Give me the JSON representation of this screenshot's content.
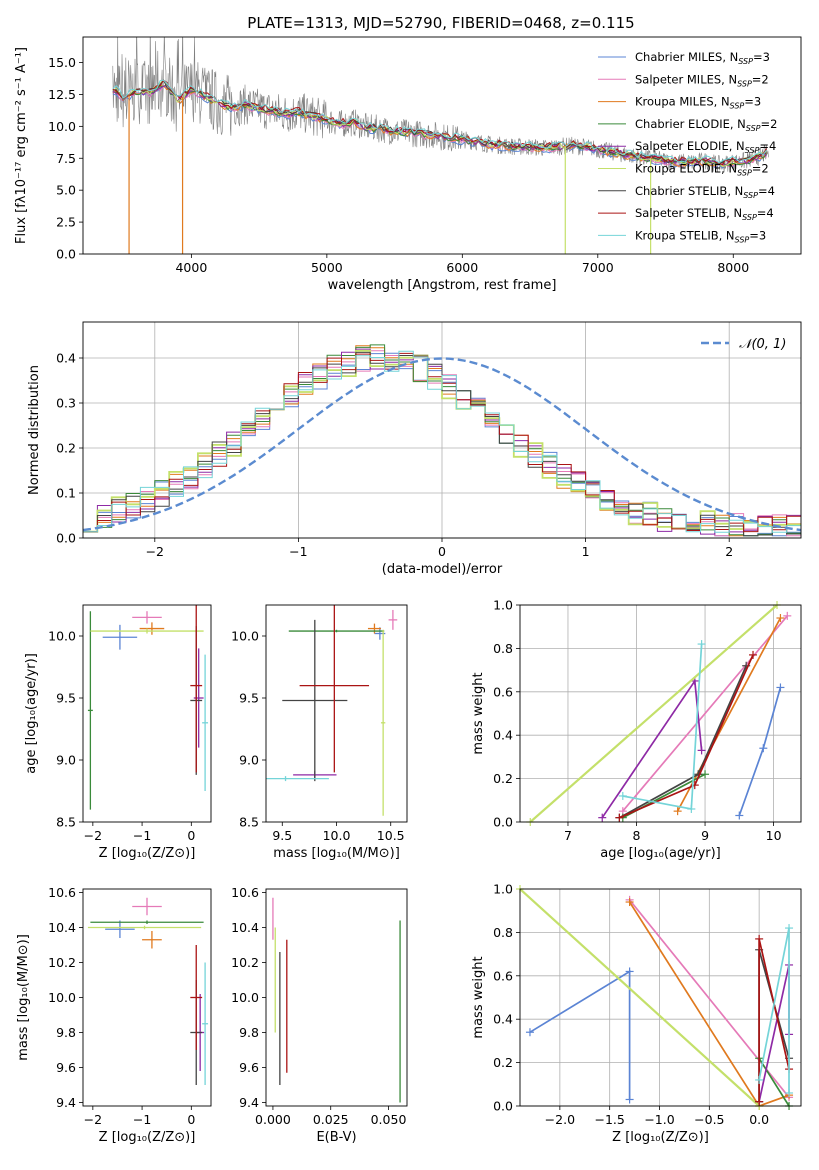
{
  "figure": {
    "title": "PLATE=1313, MJD=52790, FIBERID=0468, z=0.115"
  },
  "colors": {
    "chabrier_miles": "#5b84d4",
    "salpeter_miles": "#e57ab8",
    "kroupa_miles": "#e07a1f",
    "chabrier_elodie": "#3a8a3a",
    "salpeter_elodie": "#8e2aa5",
    "kroupa_elodie": "#c4e06a",
    "chabrier_stelib": "#444444",
    "salpeter_stelib": "#aa1414",
    "kroupa_stelib": "#74d4d8",
    "data_spectrum": "#7f7f7f",
    "normal_curve": "#5b8bd0"
  },
  "chart_data": [
    {
      "id": "spectrum",
      "type": "line",
      "xlabel": "wavelength [Angstrom, rest frame]",
      "ylabel": "Flux [fλ10⁻¹⁷ erg cm⁻² s⁻¹ A⁻¹]",
      "xlim": [
        3200,
        8500
      ],
      "ylim": [
        0,
        17
      ],
      "xticks": [
        4000,
        5000,
        6000,
        7000,
        8000
      ],
      "yticks": [
        0.0,
        2.5,
        5.0,
        7.5,
        10.0,
        12.5,
        15.0
      ],
      "legend": "top-right",
      "legend_entries": [
        {
          "key": "chabrier_miles",
          "label": "Chabrier MILES, N",
          "sub": "SSP",
          "suffix": "=3"
        },
        {
          "key": "salpeter_miles",
          "label": "Salpeter MILES, N",
          "sub": "SSP",
          "suffix": "=2"
        },
        {
          "key": "kroupa_miles",
          "label": "Kroupa MILES, N",
          "sub": "SSP",
          "suffix": "=3"
        },
        {
          "key": "chabrier_elodie",
          "label": "Chabrier ELODIE, N",
          "sub": "SSP",
          "suffix": "=2"
        },
        {
          "key": "salpeter_elodie",
          "label": "Salpeter ELODIE, N",
          "sub": "SSP",
          "suffix": "=4"
        },
        {
          "key": "kroupa_elodie",
          "label": "Kroupa ELODIE, N",
          "sub": "SSP",
          "suffix": "=2"
        },
        {
          "key": "chabrier_stelib",
          "label": "Chabrier STELIB, N",
          "sub": "SSP",
          "suffix": "=4"
        },
        {
          "key": "salpeter_stelib",
          "label": "Salpeter STELIB, N",
          "sub": "SSP",
          "suffix": "=4"
        },
        {
          "key": "kroupa_stelib",
          "label": "Kroupa STELIB, N",
          "sub": "SSP",
          "suffix": "=3"
        }
      ],
      "model_continuum": {
        "x": [
          3420,
          3500,
          3600,
          3700,
          3800,
          3900,
          4000,
          4100,
          4200,
          4300,
          4400,
          4500,
          4600,
          4700,
          4800,
          4900,
          5000,
          5100,
          5200,
          5300,
          5400,
          5500,
          5600,
          5700,
          5800,
          5900,
          6000,
          6100,
          6200,
          6300,
          6400,
          6500,
          6600,
          6700,
          6800,
          6900,
          7000,
          7100,
          7200,
          7300,
          7400,
          7500,
          7600,
          7700,
          7800,
          7900,
          8000,
          8100,
          8250
        ],
        "y": [
          13.0,
          12.2,
          12.8,
          12.6,
          13.4,
          12.0,
          12.9,
          12.4,
          11.8,
          11.5,
          11.7,
          11.4,
          11.2,
          11.0,
          11.1,
          10.8,
          10.5,
          10.2,
          10.3,
          9.9,
          9.8,
          9.6,
          9.5,
          9.4,
          9.3,
          9.1,
          9.0,
          8.8,
          8.6,
          8.5,
          8.4,
          8.4,
          8.3,
          8.4,
          8.5,
          8.4,
          8.2,
          8.0,
          7.8,
          7.6,
          7.5,
          7.3,
          7.2,
          7.2,
          7.3,
          7.0,
          7.2,
          7.3,
          7.9
        ]
      },
      "spikes": [
        {
          "x": 3540,
          "y": 0
        },
        {
          "x": 3935,
          "y": 0
        },
        {
          "x": 6760,
          "y": 0
        },
        {
          "x": 7390,
          "y": 0
        }
      ]
    },
    {
      "id": "residual_histogram",
      "type": "line",
      "xlabel": "(data-model)/error",
      "ylabel": "Normed distribution",
      "xlim": [
        -2.5,
        2.5
      ],
      "ylim": [
        0,
        0.48
      ],
      "xticks": [
        -2,
        -1,
        0,
        1,
        2
      ],
      "yticks": [
        0.0,
        0.1,
        0.2,
        0.3,
        0.4
      ],
      "grid": true,
      "legend": "top-right",
      "legend_label": "𝒩(0, 1)"
    },
    {
      "id": "age_vs_Z",
      "type": "scatter",
      "xlabel": "Z [log₁₀(Z/Z⊙)]",
      "ylabel": "age  [log₁₀(age/yr)]",
      "xlim": [
        -2.2,
        0.4
      ],
      "ylim": [
        8.5,
        10.25
      ],
      "xticks": [
        -2,
        -1,
        0
      ],
      "yticks": [
        8.5,
        9.0,
        9.5,
        10.0
      ],
      "points": [
        {
          "key": "chabrier_miles",
          "x": -1.45,
          "y": 9.99,
          "xerr": 0.35,
          "yerr": 0.1
        },
        {
          "key": "salpeter_miles",
          "x": -0.9,
          "y": 10.15,
          "xerr": 0.3,
          "yerr": 0.05
        },
        {
          "key": "kroupa_miles",
          "x": -0.8,
          "y": 10.06,
          "xerr": 0.25,
          "yerr": 0.05
        },
        {
          "key": "chabrier_elodie",
          "x": -2.05,
          "y": 9.4,
          "xerr": 0.05,
          "yerr": 0.8
        },
        {
          "key": "salpeter_elodie",
          "x": 0.15,
          "y": 9.5,
          "xerr": 0.1,
          "yerr": 0.4
        },
        {
          "key": "kroupa_elodie",
          "x": -0.9,
          "y": 10.04,
          "xerr": 1.15,
          "yerr": 0.02
        },
        {
          "key": "chabrier_stelib",
          "x": 0.1,
          "y": 9.48,
          "xerr": 0.12,
          "yerr": 0.6
        },
        {
          "key": "salpeter_stelib",
          "x": 0.1,
          "y": 9.6,
          "xerr": 0.12,
          "yerr": 0.7
        },
        {
          "key": "kroupa_stelib",
          "x": 0.28,
          "y": 9.3,
          "xerr": 0.06,
          "yerr": 0.55
        }
      ]
    },
    {
      "id": "age_vs_mass",
      "type": "scatter",
      "xlabel": "mass [log₁₀(M/M⊙)]",
      "ylabel": "",
      "xlim": [
        9.35,
        10.65
      ],
      "ylim": [
        8.5,
        10.25
      ],
      "xticks": [
        9.5,
        10.0,
        10.5
      ],
      "yticks": [
        8.5,
        9.0,
        9.5,
        10.0
      ],
      "points": [
        {
          "key": "chabrier_miles",
          "x": 10.4,
          "y": 10.02,
          "xerr": 0.05,
          "yerr": 0.05
        },
        {
          "key": "salpeter_miles",
          "x": 10.52,
          "y": 10.13,
          "xerr": 0.04,
          "yerr": 0.08
        },
        {
          "key": "kroupa_miles",
          "x": 10.35,
          "y": 10.06,
          "xerr": 0.06,
          "yerr": 0.04
        },
        {
          "key": "chabrier_elodie",
          "x": 10.0,
          "y": 10.04,
          "xerr": 0.44,
          "yerr": 0.01
        },
        {
          "key": "salpeter_elodie",
          "x": 9.8,
          "y": 8.88,
          "xerr": 0.2,
          "yerr": 0.03
        },
        {
          "key": "kroupa_elodie",
          "x": 10.43,
          "y": 9.3,
          "xerr": 0.02,
          "yerr": 0.75
        },
        {
          "key": "chabrier_stelib",
          "x": 9.8,
          "y": 9.48,
          "xerr": 0.3,
          "yerr": 0.65
        },
        {
          "key": "salpeter_stelib",
          "x": 9.98,
          "y": 9.6,
          "xerr": 0.32,
          "yerr": 0.7
        },
        {
          "key": "kroupa_stelib",
          "x": 9.53,
          "y": 8.85,
          "xerr": 0.4,
          "yerr": 0.02
        }
      ]
    },
    {
      "id": "massweight_vs_age",
      "type": "line",
      "xlabel": "age  [log₁₀(age/yr)]",
      "ylabel": "mass weight",
      "xlim": [
        6.3,
        10.4
      ],
      "ylim": [
        0,
        1
      ],
      "xticks": [
        7,
        8,
        9,
        10
      ],
      "yticks": [
        0.0,
        0.2,
        0.4,
        0.6,
        0.8,
        1.0
      ],
      "grid": true,
      "series": [
        {
          "key": "chabrier_miles",
          "x": [
            9.5,
            9.85,
            10.1
          ],
          "y": [
            0.03,
            0.34,
            0.62
          ]
        },
        {
          "key": "salpeter_miles",
          "x": [
            7.8,
            10.2
          ],
          "y": [
            0.05,
            0.95
          ]
        },
        {
          "key": "kroupa_miles",
          "x": [
            8.6,
            10.1
          ],
          "y": [
            0.05,
            0.94
          ]
        },
        {
          "key": "chabrier_elodie",
          "x": [
            7.8,
            9.0
          ],
          "y": [
            0.02,
            0.22
          ]
        },
        {
          "key": "salpeter_elodie",
          "x": [
            7.5,
            8.85,
            8.95
          ],
          "y": [
            0.02,
            0.65,
            0.33
          ]
        },
        {
          "key": "kroupa_elodie",
          "x": [
            6.45,
            10.05
          ],
          "y": [
            0.0,
            1.0
          ]
        },
        {
          "key": "chabrier_stelib",
          "x": [
            7.75,
            8.9,
            9.6
          ],
          "y": [
            0.02,
            0.22,
            0.72
          ]
        },
        {
          "key": "salpeter_stelib",
          "x": [
            7.75,
            8.85,
            9.7
          ],
          "y": [
            0.02,
            0.17,
            0.77
          ]
        },
        {
          "key": "kroupa_stelib",
          "x": [
            7.8,
            8.8,
            8.95
          ],
          "y": [
            0.12,
            0.06,
            0.82
          ]
        }
      ]
    },
    {
      "id": "mass_vs_Z",
      "type": "scatter",
      "xlabel": "Z [log₁₀(Z/Z⊙)]",
      "ylabel": "mass [log₁₀(M/M⊙)]",
      "xlim": [
        -2.2,
        0.4
      ],
      "ylim": [
        9.38,
        10.62
      ],
      "xticks": [
        -2,
        -1,
        0
      ],
      "yticks": [
        9.4,
        9.6,
        9.8,
        10.0,
        10.2,
        10.4,
        10.6
      ],
      "points": [
        {
          "key": "chabrier_miles",
          "x": -1.45,
          "y": 10.39,
          "xerr": 0.3,
          "yerr": 0.05
        },
        {
          "key": "salpeter_miles",
          "x": -0.9,
          "y": 10.52,
          "xerr": 0.3,
          "yerr": 0.05
        },
        {
          "key": "kroupa_miles",
          "x": -0.8,
          "y": 10.33,
          "xerr": 0.2,
          "yerr": 0.05
        },
        {
          "key": "chabrier_elodie",
          "x": -0.9,
          "y": 10.43,
          "xerr": 1.15,
          "yerr": 0.01
        },
        {
          "key": "salpeter_elodie",
          "x": 0.18,
          "y": 9.8,
          "xerr": 0.08,
          "yerr": 0.22
        },
        {
          "key": "kroupa_elodie",
          "x": -0.95,
          "y": 10.4,
          "xerr": 1.15,
          "yerr": 0.01
        },
        {
          "key": "chabrier_stelib",
          "x": 0.1,
          "y": 9.8,
          "xerr": 0.12,
          "yerr": 0.3
        },
        {
          "key": "salpeter_stelib",
          "x": 0.1,
          "y": 10.0,
          "xerr": 0.12,
          "yerr": 0.3
        },
        {
          "key": "kroupa_stelib",
          "x": 0.28,
          "y": 9.85,
          "xerr": 0.06,
          "yerr": 0.35
        }
      ]
    },
    {
      "id": "mass_vs_EBV",
      "type": "scatter",
      "xlabel": "E(B-V)",
      "ylabel": "",
      "xlim": [
        -0.003,
        0.058
      ],
      "ylim": [
        9.38,
        10.62
      ],
      "xticks": [
        0.0,
        0.025,
        0.05
      ],
      "tick_labels": [
        "0.000",
        "0.025",
        "0.050"
      ],
      "yticks": [
        9.4,
        9.6,
        9.8,
        10.0,
        10.2,
        10.4,
        10.6
      ],
      "points": [
        {
          "key": "salpeter_miles",
          "x": 0.0,
          "y": 10.45,
          "xerr": 0.0,
          "yerr": 0.12
        },
        {
          "key": "kroupa_elodie",
          "x": 0.001,
          "y": 10.1,
          "xerr": 0.0,
          "yerr": 0.3
        },
        {
          "key": "chabrier_stelib",
          "x": 0.003,
          "y": 9.88,
          "xerr": 0.0,
          "yerr": 0.38
        },
        {
          "key": "salpeter_stelib",
          "x": 0.006,
          "y": 9.95,
          "xerr": 0.0,
          "yerr": 0.38
        },
        {
          "key": "chabrier_elodie",
          "x": 0.055,
          "y": 9.92,
          "xerr": 0.0,
          "yerr": 0.52
        }
      ]
    },
    {
      "id": "massweight_vs_Z",
      "type": "line",
      "xlabel": "Z [log₁₀(Z/Z⊙)]",
      "ylabel": "mass weight",
      "xlim": [
        -2.4,
        0.42
      ],
      "ylim": [
        0,
        1
      ],
      "xticks": [
        -2.0,
        -1.5,
        -1.0,
        -0.5,
        0.0
      ],
      "tick_labels": [
        "−2.0",
        "−1.5",
        "−1.0",
        "−0.5",
        "0.0"
      ],
      "yticks": [
        0.0,
        0.2,
        0.4,
        0.6,
        0.8,
        1.0
      ],
      "grid": true,
      "series": [
        {
          "key": "chabrier_miles",
          "x": [
            -2.3,
            -1.3,
            -1.3
          ],
          "y": [
            0.34,
            0.62,
            0.03
          ]
        },
        {
          "key": "salpeter_miles",
          "x": [
            -1.3,
            0.3
          ],
          "y": [
            0.95,
            0.04
          ]
        },
        {
          "key": "kroupa_miles",
          "x": [
            -1.3,
            0.0,
            0.3
          ],
          "y": [
            0.94,
            0.0,
            0.05
          ]
        },
        {
          "key": "chabrier_elodie",
          "x": [
            0.0,
            0.3
          ],
          "y": [
            0.22,
            0.0
          ]
        },
        {
          "key": "salpeter_elodie",
          "x": [
            0.0,
            0.3,
            0.3
          ],
          "y": [
            0.02,
            0.65,
            0.33
          ]
        },
        {
          "key": "kroupa_elodie",
          "x": [
            -2.4,
            0.0
          ],
          "y": [
            1.0,
            0.0
          ]
        },
        {
          "key": "chabrier_stelib",
          "x": [
            0.0,
            0.0,
            0.3
          ],
          "y": [
            0.02,
            0.72,
            0.22
          ]
        },
        {
          "key": "salpeter_stelib",
          "x": [
            0.0,
            0.0,
            0.3
          ],
          "y": [
            0.02,
            0.77,
            0.17
          ]
        },
        {
          "key": "kroupa_stelib",
          "x": [
            0.0,
            0.3,
            0.3
          ],
          "y": [
            0.12,
            0.82,
            0.06
          ]
        }
      ]
    }
  ]
}
